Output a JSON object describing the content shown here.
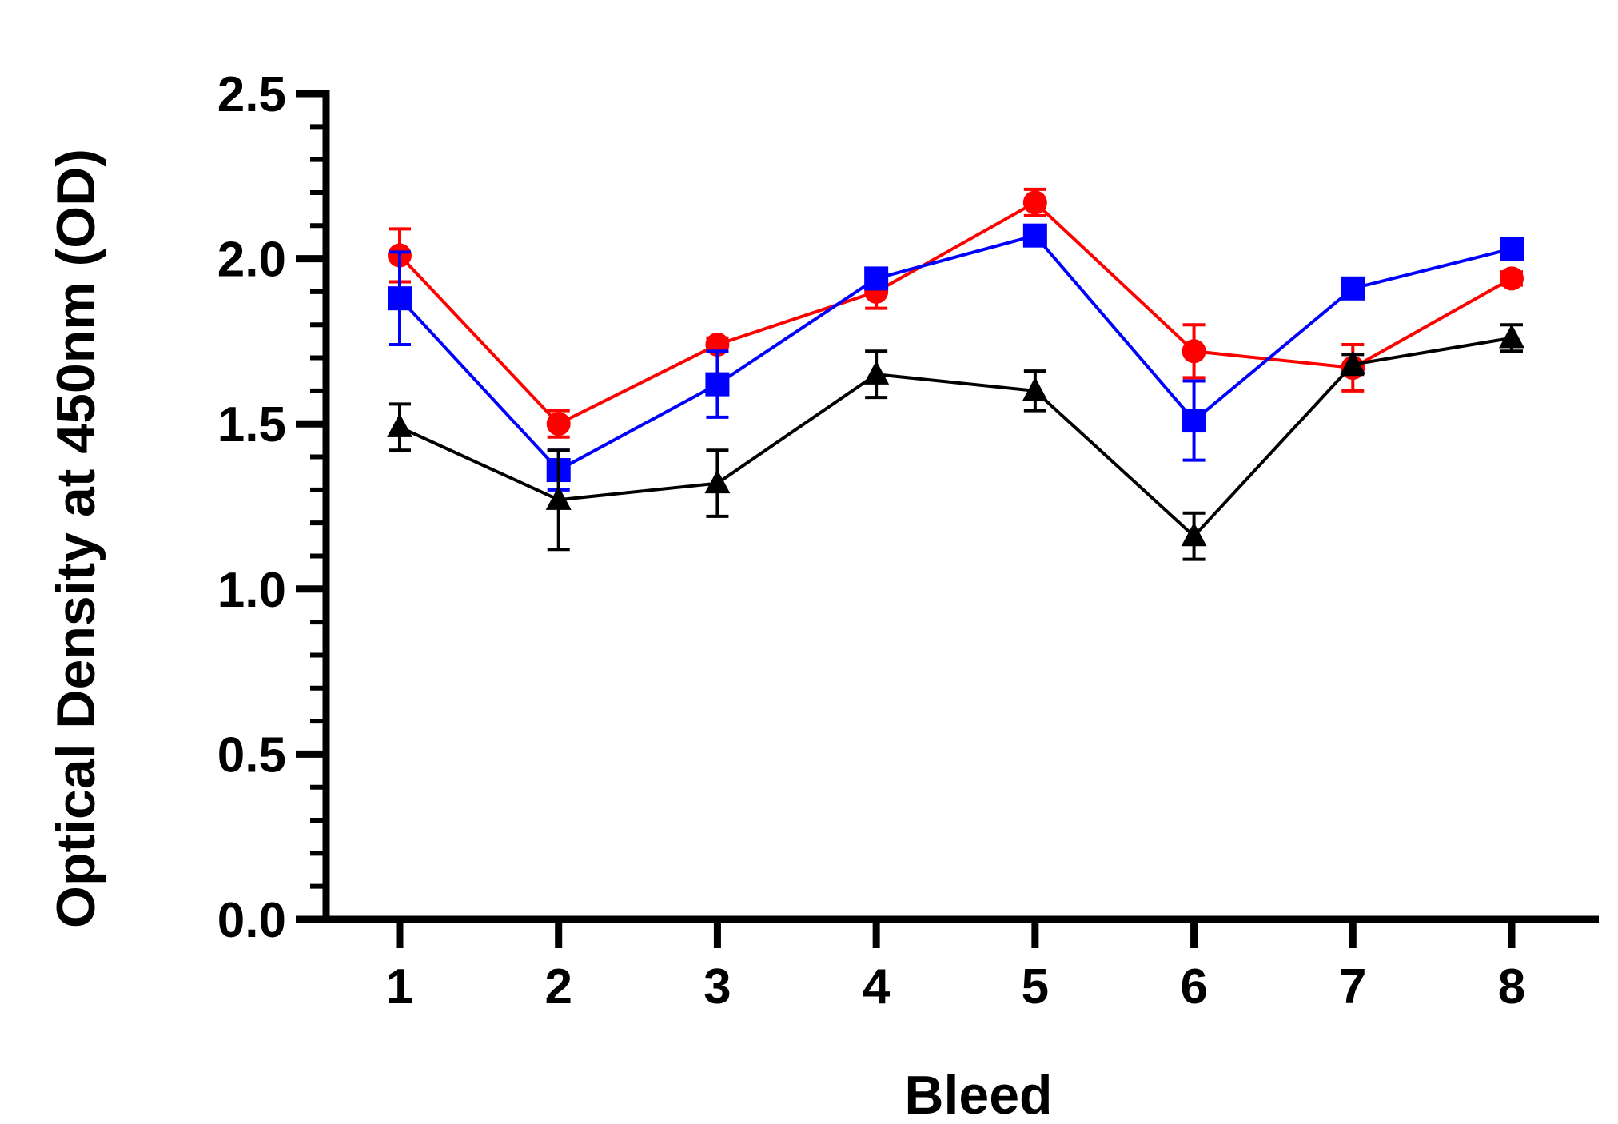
{
  "chart_data": {
    "type": "line",
    "title": "",
    "xlabel": "Bleed",
    "ylabel": "Optical Density at 450nm (OD)",
    "x": [
      1,
      2,
      3,
      4,
      5,
      6,
      7,
      8
    ],
    "x_tick_labels": [
      "1",
      "2",
      "3",
      "4",
      "5",
      "6",
      "7",
      "8"
    ],
    "ylim": [
      0,
      2.5
    ],
    "y_tick_labels": [
      "0.0",
      "0.5",
      "1.0",
      "1.5",
      "2.0",
      "2.5"
    ],
    "y_minor_step": 0.1,
    "grid": false,
    "legend": "none",
    "series": [
      {
        "name": "red",
        "color": "#ff0000",
        "marker": "circle",
        "values": [
          2.01,
          1.5,
          1.74,
          1.9,
          2.17,
          1.72,
          1.67,
          1.94
        ],
        "error": [
          0.08,
          0.04,
          0.02,
          0.05,
          0.04,
          0.08,
          0.07,
          0.02
        ]
      },
      {
        "name": "blue",
        "color": "#0000ff",
        "marker": "square",
        "values": [
          1.88,
          1.36,
          1.62,
          1.94,
          2.07,
          1.51,
          1.91,
          2.03
        ],
        "error": [
          0.14,
          0.06,
          0.1,
          0.02,
          0.03,
          0.12,
          0.02,
          0.02
        ]
      },
      {
        "name": "black",
        "color": "#000000",
        "marker": "triangle",
        "values": [
          1.49,
          1.27,
          1.32,
          1.65,
          1.6,
          1.16,
          1.68,
          1.76
        ],
        "error": [
          0.07,
          0.15,
          0.1,
          0.07,
          0.06,
          0.07,
          0.03,
          0.04
        ]
      }
    ]
  }
}
